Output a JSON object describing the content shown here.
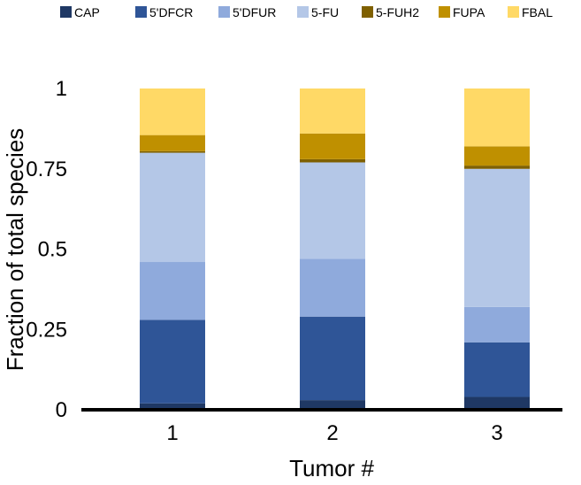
{
  "chart_data": {
    "type": "bar",
    "stacked": true,
    "categories": [
      "1",
      "2",
      "3"
    ],
    "series": [
      {
        "name": "CAP",
        "color": "#1f3864",
        "values": [
          0.02,
          0.03,
          0.04
        ]
      },
      {
        "name": "5'DFCR",
        "color": "#2f5597",
        "values": [
          0.26,
          0.26,
          0.17
        ]
      },
      {
        "name": "5'DFUR",
        "color": "#8faadc",
        "values": [
          0.18,
          0.18,
          0.11
        ]
      },
      {
        "name": "5-FU",
        "color": "#b4c7e7",
        "values": [
          0.34,
          0.3,
          0.43
        ]
      },
      {
        "name": "5-FUH2",
        "color": "#7f6000",
        "values": [
          0.005,
          0.01,
          0.01
        ]
      },
      {
        "name": "FUPA",
        "color": "#bf9000",
        "values": [
          0.05,
          0.08,
          0.06
        ]
      },
      {
        "name": "FBAL",
        "color": "#ffd966",
        "values": [
          0.145,
          0.14,
          0.18
        ]
      }
    ],
    "xlabel": "Tumor #",
    "ylabel": "Fraction of total species",
    "ylim": [
      0,
      1
    ],
    "yticks": [
      0,
      0.25,
      0.5,
      0.75,
      1
    ],
    "ytick_labels": [
      "0",
      "0.25",
      "0.5",
      "0.75",
      "1"
    ],
    "legend_position": "top",
    "grid": false
  }
}
